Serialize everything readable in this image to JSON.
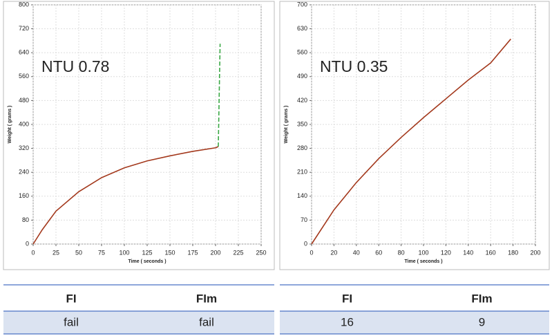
{
  "chart_data": [
    {
      "type": "line",
      "annotation": "NTU 0.78",
      "xlabel": "Time ( seconds )",
      "ylabel": "Weight ( grams )",
      "x": [
        0,
        10,
        25,
        50,
        75,
        100,
        125,
        150,
        175,
        200,
        203,
        205
      ],
      "series": [
        {
          "color": "#a3381c",
          "dashed": false,
          "values": [
            0,
            48,
            110,
            175,
            222,
            255,
            278,
            295,
            310,
            322,
            326,
            null
          ]
        },
        {
          "color": "#3aa845",
          "dashed": true,
          "values": [
            null,
            null,
            null,
            null,
            null,
            null,
            null,
            null,
            null,
            null,
            326,
            670
          ]
        }
      ],
      "xlim": [
        0,
        250
      ],
      "xticks": [
        0,
        25,
        50,
        75,
        100,
        125,
        150,
        175,
        200,
        225,
        250
      ],
      "ylim": [
        0,
        800
      ],
      "yticks": [
        0,
        80,
        160,
        240,
        320,
        400,
        480,
        560,
        640,
        720,
        800
      ],
      "grid": true
    },
    {
      "type": "line",
      "annotation": "NTU 0.35",
      "xlabel": "Time ( seconds )",
      "ylabel": "Weight ( grams )",
      "x": [
        0,
        20,
        40,
        60,
        80,
        100,
        120,
        140,
        160,
        178
      ],
      "series": [
        {
          "color": "#a3381c",
          "dashed": false,
          "values": [
            0,
            100,
            180,
            250,
            312,
            370,
            425,
            480,
            530,
            600
          ]
        }
      ],
      "xlim": [
        0,
        200
      ],
      "xticks": [
        0,
        20,
        40,
        60,
        80,
        100,
        120,
        140,
        160,
        180,
        200
      ],
      "ylim": [
        0,
        700
      ],
      "yticks": [
        0,
        70,
        140,
        210,
        280,
        350,
        420,
        490,
        560,
        630,
        700
      ],
      "grid": true
    }
  ],
  "tables": [
    {
      "header": [
        "FI",
        "FIm"
      ],
      "rows": [
        [
          "fail",
          "fail"
        ]
      ]
    },
    {
      "header": [
        "FI",
        "FIm"
      ],
      "rows": [
        [
          16,
          9
        ]
      ]
    }
  ]
}
